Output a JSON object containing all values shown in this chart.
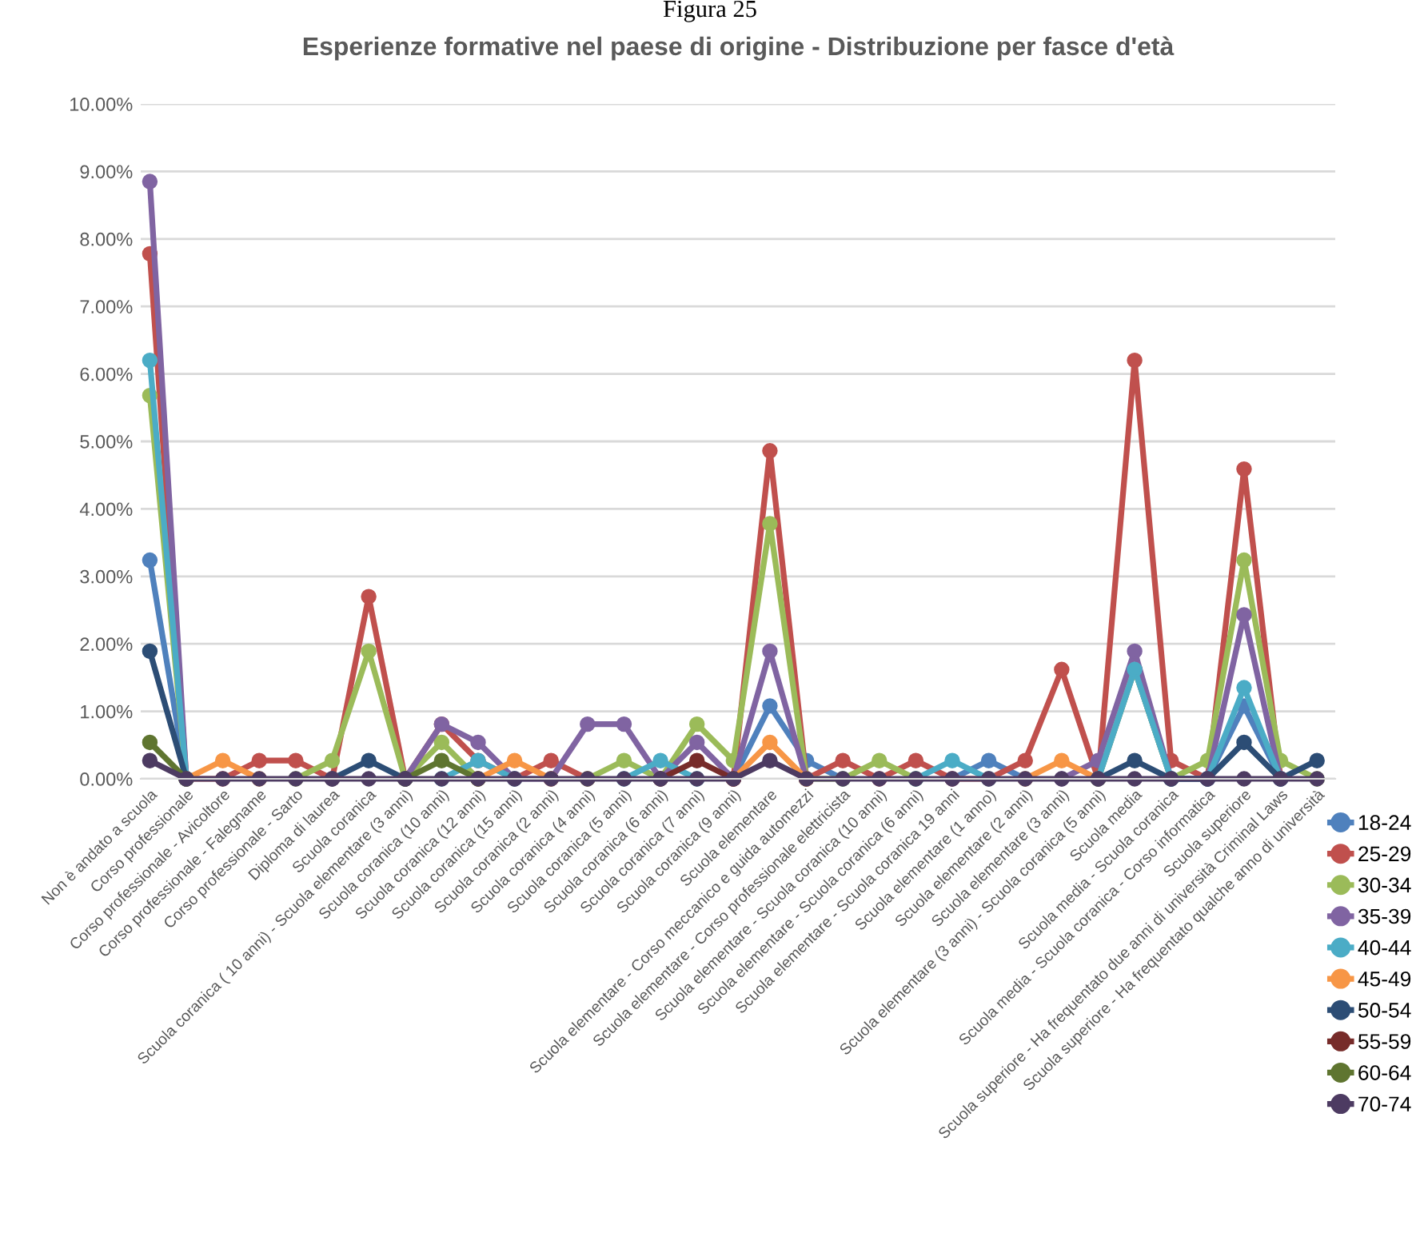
{
  "chart_data": {
    "type": "line",
    "title": "Esperienze formative nel paese di origine - Distribuzione per fasce d'età",
    "annotations": [
      "Figura 25"
    ],
    "categories": [
      "Non è andato a scuola",
      "Corso professionale",
      "Corso professionale - Avicoltore",
      "Corso professionale - Falegname",
      "Corso professionale - Sarto",
      "Diploma di laurea",
      "Scuola coranica",
      "Scuola coranica ( 10 anni) - Scuola elementare (3 anni)",
      "Scuola coranica (10 anni)",
      "Scuola coranica (12 anni)",
      "Scuola coranica (15 anni)",
      "Scuola coranica (2 anni)",
      "Scuola coranica (4 anni)",
      "Scuola coranica (5 anni)",
      "Scuola coranica (6 anni)",
      "Scuola coranica (7 anni)",
      "Scuola coranica (9 anni)",
      "Scuola elementare",
      "Scuola elementare - Corso meccanico e guida automezzi",
      "Scuola elementare - Corso professionale elettricista",
      "Scuola elementare - Scuola coranica (10 anni)",
      "Scuola elementare - Scuola coranica (6 anni)",
      "Scuola elementare - Scuola coranica 19 anni",
      "Scuola elementare (1 anno)",
      "Scuola elementare (2 anni)",
      "Scuola elementare (3 anni)",
      "Scuola elementare (3 anni) - Scuola coranica (5 anni)",
      "Scuola media",
      "Scuola media - Scuola coranica",
      "Scuola media - Scuola coranica - Corso informatica",
      "Scuola superiore",
      "Scuola superiore - Ha frequentato due anni di università Criminal Laws",
      "Scuola superiore - Ha frequentato qualche anno di università"
    ],
    "series": [
      {
        "name": "18-24",
        "color": "#4f81bd",
        "values": [
          3.24,
          0,
          null,
          null,
          null,
          null,
          null,
          null,
          null,
          null,
          null,
          null,
          null,
          null,
          null,
          null,
          0,
          1.08,
          0.27,
          0,
          null,
          null,
          0,
          0.27,
          0,
          null,
          0,
          1.62,
          0,
          0,
          1.08,
          0,
          null
        ]
      },
      {
        "name": "25-29",
        "color": "#c0504d",
        "values": [
          7.78,
          0,
          0,
          0.27,
          0.27,
          0,
          2.7,
          0,
          0.81,
          0.27,
          0,
          0.27,
          0,
          null,
          null,
          null,
          0,
          4.86,
          0,
          0.27,
          0,
          0.27,
          0,
          0,
          0.27,
          1.62,
          0,
          6.2,
          0.27,
          0,
          4.59,
          0,
          null
        ]
      },
      {
        "name": "30-34",
        "color": "#9bbb59",
        "values": [
          5.68,
          0,
          null,
          null,
          0,
          0.27,
          1.89,
          0,
          0.54,
          0,
          null,
          null,
          0,
          0.27,
          0,
          0.81,
          0.27,
          3.78,
          0,
          0,
          0.27,
          0,
          null,
          null,
          null,
          null,
          0,
          1.62,
          0,
          0.27,
          3.24,
          0.27,
          0
        ]
      },
      {
        "name": "35-39",
        "color": "#8064a2",
        "values": [
          8.85,
          0,
          null,
          null,
          null,
          null,
          null,
          0,
          0.81,
          0.54,
          0,
          0,
          0.81,
          0.81,
          0,
          0.54,
          0,
          1.89,
          0,
          null,
          null,
          null,
          null,
          null,
          null,
          0,
          0.27,
          1.89,
          0,
          0,
          2.43,
          0,
          null
        ]
      },
      {
        "name": "40-44",
        "color": "#4bacc6",
        "values": [
          6.2,
          0,
          null,
          null,
          null,
          null,
          null,
          null,
          0,
          0.27,
          0,
          null,
          null,
          0,
          0.27,
          0,
          null,
          null,
          null,
          null,
          null,
          0,
          0.27,
          0,
          null,
          null,
          0,
          1.62,
          0,
          0,
          1.35,
          0,
          null
        ]
      },
      {
        "name": "45-49",
        "color": "#f79646",
        "values": [
          null,
          0,
          0.27,
          0,
          null,
          null,
          null,
          null,
          null,
          0,
          0.27,
          0,
          null,
          null,
          null,
          null,
          0,
          0.54,
          0,
          null,
          null,
          null,
          null,
          null,
          0,
          0.27,
          0,
          null,
          null,
          null,
          null,
          null,
          null
        ]
      },
      {
        "name": "50-54",
        "color": "#2c4d75",
        "values": [
          1.89,
          0,
          null,
          null,
          null,
          0,
          0.27,
          0,
          null,
          null,
          null,
          null,
          null,
          null,
          null,
          null,
          null,
          null,
          null,
          null,
          null,
          null,
          null,
          null,
          null,
          null,
          0,
          0.27,
          0,
          0,
          0.54,
          0,
          0.27
        ]
      },
      {
        "name": "55-59",
        "color": "#772c2a",
        "values": [
          null,
          null,
          null,
          null,
          null,
          null,
          null,
          null,
          null,
          null,
          null,
          null,
          null,
          null,
          0,
          0.27,
          0,
          null,
          null,
          null,
          null,
          null,
          null,
          null,
          null,
          null,
          null,
          null,
          null,
          null,
          null,
          null,
          null
        ]
      },
      {
        "name": "60-64",
        "color": "#5f7530",
        "values": [
          0.54,
          0,
          null,
          null,
          null,
          null,
          null,
          0,
          0.27,
          0,
          null,
          null,
          null,
          null,
          null,
          null,
          null,
          null,
          null,
          null,
          null,
          null,
          null,
          null,
          null,
          null,
          null,
          null,
          null,
          null,
          null,
          null,
          null
        ]
      },
      {
        "name": "70-74",
        "color": "#4d3b62",
        "values": [
          0.27,
          0,
          0,
          0,
          0,
          0,
          0,
          0,
          0,
          0,
          0,
          0,
          0,
          0,
          0,
          0,
          0,
          0.27,
          0,
          0,
          0,
          0,
          0,
          0,
          0,
          0,
          0,
          0,
          0,
          0,
          0,
          0,
          0
        ]
      }
    ],
    "ylim": [
      0,
      10
    ],
    "yticks": [
      {
        "value": 0,
        "label": "0.00%"
      },
      {
        "value": 1,
        "label": "1.00%"
      },
      {
        "value": 2,
        "label": "2.00%"
      },
      {
        "value": 3,
        "label": "3.00%"
      },
      {
        "value": 4,
        "label": "4.00%"
      },
      {
        "value": 5,
        "label": "5.00%"
      },
      {
        "value": 6,
        "label": "6.00%"
      },
      {
        "value": 7,
        "label": "7.00%"
      },
      {
        "value": 8,
        "label": "8.00%"
      },
      {
        "value": 9,
        "label": "9.00%"
      },
      {
        "value": 10,
        "label": "10.00%"
      }
    ],
    "grid": "y",
    "legend": "right",
    "marker": "circle",
    "line_style": "solid"
  }
}
